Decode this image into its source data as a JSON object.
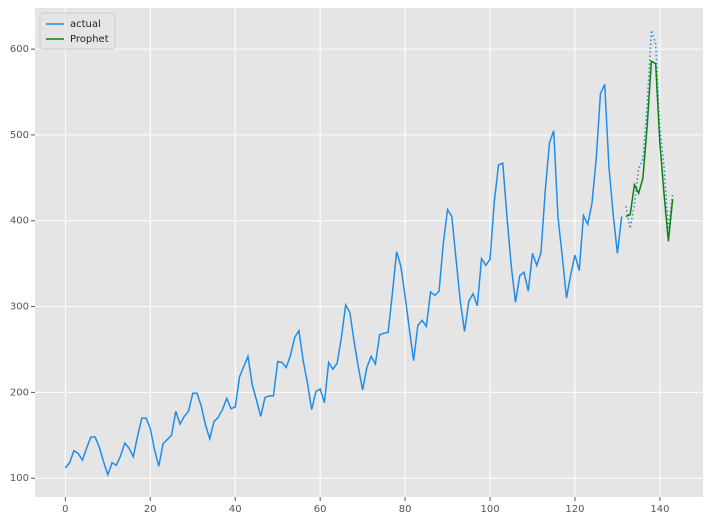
{
  "chart_data": {
    "type": "line",
    "x": [
      0,
      1,
      2,
      3,
      4,
      5,
      6,
      7,
      8,
      9,
      10,
      11,
      12,
      13,
      14,
      15,
      16,
      17,
      18,
      19,
      20,
      21,
      22,
      23,
      24,
      25,
      26,
      27,
      28,
      29,
      30,
      31,
      32,
      33,
      34,
      35,
      36,
      37,
      38,
      39,
      40,
      41,
      42,
      43,
      44,
      45,
      46,
      47,
      48,
      49,
      50,
      51,
      52,
      53,
      54,
      55,
      56,
      57,
      58,
      59,
      60,
      61,
      62,
      63,
      64,
      65,
      66,
      67,
      68,
      69,
      70,
      71,
      72,
      73,
      74,
      75,
      76,
      77,
      78,
      79,
      80,
      81,
      82,
      83,
      84,
      85,
      86,
      87,
      88,
      89,
      90,
      91,
      92,
      93,
      94,
      95,
      96,
      97,
      98,
      99,
      100,
      101,
      102,
      103,
      104,
      105,
      106,
      107,
      108,
      109,
      110,
      111,
      112,
      113,
      114,
      115,
      116,
      117,
      118,
      119,
      120,
      121,
      122,
      123,
      124,
      125,
      126,
      127,
      128,
      129,
      130,
      131,
      132,
      133,
      134,
      135,
      136,
      137,
      138,
      139,
      140,
      141,
      142,
      143
    ],
    "series": [
      {
        "name": "actual",
        "color": "#1f8ee8",
        "dotted_from": 132,
        "values": [
          112,
          118,
          132,
          129,
          121,
          135,
          148,
          148,
          136,
          119,
          104,
          118,
          115,
          126,
          141,
          135,
          125,
          149,
          170,
          170,
          158,
          133,
          114,
          140,
          145,
          150,
          178,
          163,
          172,
          178,
          199,
          199,
          184,
          162,
          146,
          166,
          171,
          180,
          193,
          181,
          183,
          218,
          230,
          242,
          209,
          191,
          172,
          194,
          196,
          196,
          236,
          235,
          229,
          243,
          264,
          272,
          237,
          211,
          180,
          201,
          204,
          188,
          235,
          227,
          234,
          264,
          302,
          293,
          259,
          229,
          203,
          229,
          242,
          233,
          267,
          269,
          270,
          315,
          364,
          347,
          312,
          274,
          237,
          278,
          284,
          277,
          317,
          313,
          318,
          374,
          413,
          405,
          355,
          306,
          271,
          306,
          315,
          301,
          356,
          348,
          355,
          422,
          465,
          467,
          404,
          347,
          305,
          336,
          340,
          318,
          362,
          348,
          363,
          435,
          491,
          505,
          404,
          359,
          310,
          337,
          360,
          342,
          406,
          396,
          420,
          472,
          548,
          559,
          463,
          407,
          362,
          405,
          417,
          391,
          419,
          461,
          472,
          535,
          622,
          606,
          508,
          461,
          390,
          432
        ]
      },
      {
        "name": "Prophet",
        "color": "#0a850a",
        "values": [
          null,
          null,
          null,
          null,
          null,
          null,
          null,
          null,
          null,
          null,
          null,
          null,
          null,
          null,
          null,
          null,
          null,
          null,
          null,
          null,
          null,
          null,
          null,
          null,
          null,
          null,
          null,
          null,
          null,
          null,
          null,
          null,
          null,
          null,
          null,
          null,
          null,
          null,
          null,
          null,
          null,
          null,
          null,
          null,
          null,
          null,
          null,
          null,
          null,
          null,
          null,
          null,
          null,
          null,
          null,
          null,
          null,
          null,
          null,
          null,
          null,
          null,
          null,
          null,
          null,
          null,
          null,
          null,
          null,
          null,
          null,
          null,
          null,
          null,
          null,
          null,
          null,
          null,
          null,
          null,
          null,
          null,
          null,
          null,
          null,
          null,
          null,
          null,
          null,
          null,
          null,
          null,
          null,
          null,
          null,
          null,
          null,
          null,
          null,
          null,
          null,
          null,
          null,
          null,
          null,
          null,
          null,
          null,
          null,
          null,
          null,
          null,
          null,
          null,
          null,
          null,
          null,
          null,
          null,
          null,
          null,
          null,
          null,
          null,
          null,
          null,
          null,
          null,
          null,
          null,
          null,
          null,
          405,
          407,
          442,
          432,
          450,
          510,
          586,
          583,
          490,
          430,
          376,
          425
        ]
      }
    ],
    "xlim": [
      -7.15,
      150.15
    ],
    "xticks": [
      0,
      20,
      40,
      60,
      80,
      100,
      120,
      140
    ],
    "ylim": [
      78.1,
      647.9
    ],
    "yticks": [
      100,
      200,
      300,
      400,
      500,
      600
    ],
    "grid": true,
    "legend": "upper left"
  }
}
